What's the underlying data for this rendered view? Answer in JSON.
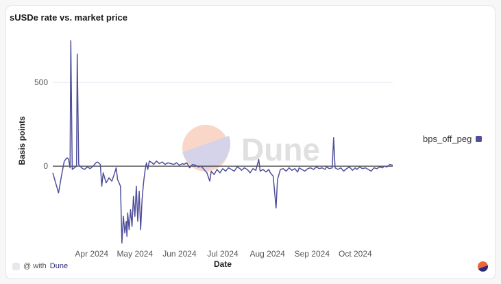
{
  "chart_data": {
    "type": "line",
    "title": "sUSDe rate vs. market price",
    "xlabel": "Date",
    "ylabel": "Basis points",
    "start_date": "2024-03-05",
    "x_unit": "days since start_date",
    "xlim": [
      0,
      236
    ],
    "ylim": [
      -475,
      870
    ],
    "yticks": [
      0,
      500
    ],
    "ytick_labels": [
      "0",
      "500"
    ],
    "xticks": [
      27,
      57,
      88,
      118,
      149,
      180,
      210
    ],
    "xtick_labels": [
      "Apr 2024",
      "May 2024",
      "Jun 2024",
      "Jul 2024",
      "Aug 2024",
      "Sep 2024",
      "Oct 2024"
    ],
    "legend": {
      "position": "right",
      "entries": [
        "bps_off_peg"
      ]
    },
    "series": [
      {
        "name": "bps_off_peg",
        "color": "#4f4f9b",
        "points": [
          [
            0,
            -40
          ],
          [
            2,
            -100
          ],
          [
            4,
            -160
          ],
          [
            6,
            -60
          ],
          [
            8,
            30
          ],
          [
            10,
            50
          ],
          [
            11,
            40
          ],
          [
            12,
            -10
          ],
          [
            12.5,
            750
          ],
          [
            13.5,
            -20
          ],
          [
            15,
            -10
          ],
          [
            16.5,
            0
          ],
          [
            17,
            670
          ],
          [
            18,
            10
          ],
          [
            20,
            -10
          ],
          [
            22,
            -20
          ],
          [
            24,
            -5
          ],
          [
            26,
            -15
          ],
          [
            28,
            0
          ],
          [
            30,
            20
          ],
          [
            31,
            25
          ],
          [
            33,
            10
          ],
          [
            34,
            -120
          ],
          [
            35,
            -40
          ],
          [
            37,
            -100
          ],
          [
            39,
            -70
          ],
          [
            41,
            -90
          ],
          [
            43,
            -40
          ],
          [
            44,
            -10
          ],
          [
            45,
            -80
          ],
          [
            46,
            -100
          ],
          [
            47,
            -120
          ],
          [
            48,
            -460
          ],
          [
            49,
            -300
          ],
          [
            50,
            -400
          ],
          [
            51,
            -330
          ],
          [
            51.5,
            -420
          ],
          [
            52,
            -280
          ],
          [
            53,
            -380
          ],
          [
            54,
            -260
          ],
          [
            55,
            -360
          ],
          [
            56,
            -180
          ],
          [
            57,
            -300
          ],
          [
            58,
            -120
          ],
          [
            59,
            -330
          ],
          [
            60,
            -150
          ],
          [
            61,
            -380
          ],
          [
            62,
            -200
          ],
          [
            63,
            -100
          ],
          [
            64,
            -30
          ],
          [
            65,
            20
          ],
          [
            66,
            -20
          ],
          [
            67,
            30
          ],
          [
            69,
            20
          ],
          [
            70,
            10
          ],
          [
            72,
            30
          ],
          [
            74,
            15
          ],
          [
            76,
            25
          ],
          [
            78,
            10
          ],
          [
            80,
            20
          ],
          [
            82,
            15
          ],
          [
            84,
            10
          ],
          [
            86,
            20
          ],
          [
            88,
            5
          ],
          [
            90,
            15
          ],
          [
            91,
            10
          ],
          [
            93,
            20
          ],
          [
            95,
            -10
          ],
          [
            97,
            10
          ],
          [
            99,
            5
          ],
          [
            101,
            -5
          ],
          [
            103,
            0
          ],
          [
            105,
            -20
          ],
          [
            107,
            -40
          ],
          [
            109,
            -90
          ],
          [
            110,
            -30
          ],
          [
            112,
            -50
          ],
          [
            114,
            -20
          ],
          [
            116,
            -40
          ],
          [
            118,
            -15
          ],
          [
            120,
            -30
          ],
          [
            122,
            -10
          ],
          [
            124,
            -20
          ],
          [
            126,
            -30
          ],
          [
            128,
            -5
          ],
          [
            130,
            -15
          ],
          [
            131,
            -25
          ],
          [
            133,
            -10
          ],
          [
            135,
            -20
          ],
          [
            137,
            -40
          ],
          [
            139,
            -15
          ],
          [
            141,
            -25
          ],
          [
            143,
            40
          ],
          [
            144,
            -30
          ],
          [
            146,
            -20
          ],
          [
            148,
            -35
          ],
          [
            150,
            -20
          ],
          [
            151,
            -40
          ],
          [
            153,
            -60
          ],
          [
            155,
            -250
          ],
          [
            156,
            -80
          ],
          [
            158,
            -20
          ],
          [
            160,
            -15
          ],
          [
            162,
            -30
          ],
          [
            164,
            -10
          ],
          [
            166,
            -25
          ],
          [
            168,
            -15
          ],
          [
            170,
            -35
          ],
          [
            171,
            -10
          ],
          [
            173,
            -20
          ],
          [
            175,
            -30
          ],
          [
            177,
            -15
          ],
          [
            179,
            -10
          ],
          [
            181,
            -20
          ],
          [
            183,
            -5
          ],
          [
            185,
            -15
          ],
          [
            187,
            -10
          ],
          [
            189,
            -20
          ],
          [
            190,
            -5
          ],
          [
            192,
            -15
          ],
          [
            194,
            -10
          ],
          [
            195,
            170
          ],
          [
            196,
            -10
          ],
          [
            198,
            -20
          ],
          [
            200,
            -10
          ],
          [
            202,
            -30
          ],
          [
            204,
            -15
          ],
          [
            206,
            -5
          ],
          [
            208,
            -25
          ],
          [
            210,
            -10
          ],
          [
            211,
            -20
          ],
          [
            213,
            -5
          ],
          [
            215,
            -15
          ],
          [
            217,
            -10
          ],
          [
            219,
            -20
          ],
          [
            221,
            -30
          ],
          [
            223,
            -10
          ],
          [
            225,
            -15
          ],
          [
            227,
            -5
          ],
          [
            229,
            -10
          ],
          [
            230,
            0
          ],
          [
            232,
            -5
          ],
          [
            234,
            10
          ],
          [
            236,
            5
          ]
        ]
      }
    ],
    "grid": true
  },
  "watermark": "Dune",
  "footer": {
    "prefix": "@ with",
    "brand": "Dune"
  }
}
